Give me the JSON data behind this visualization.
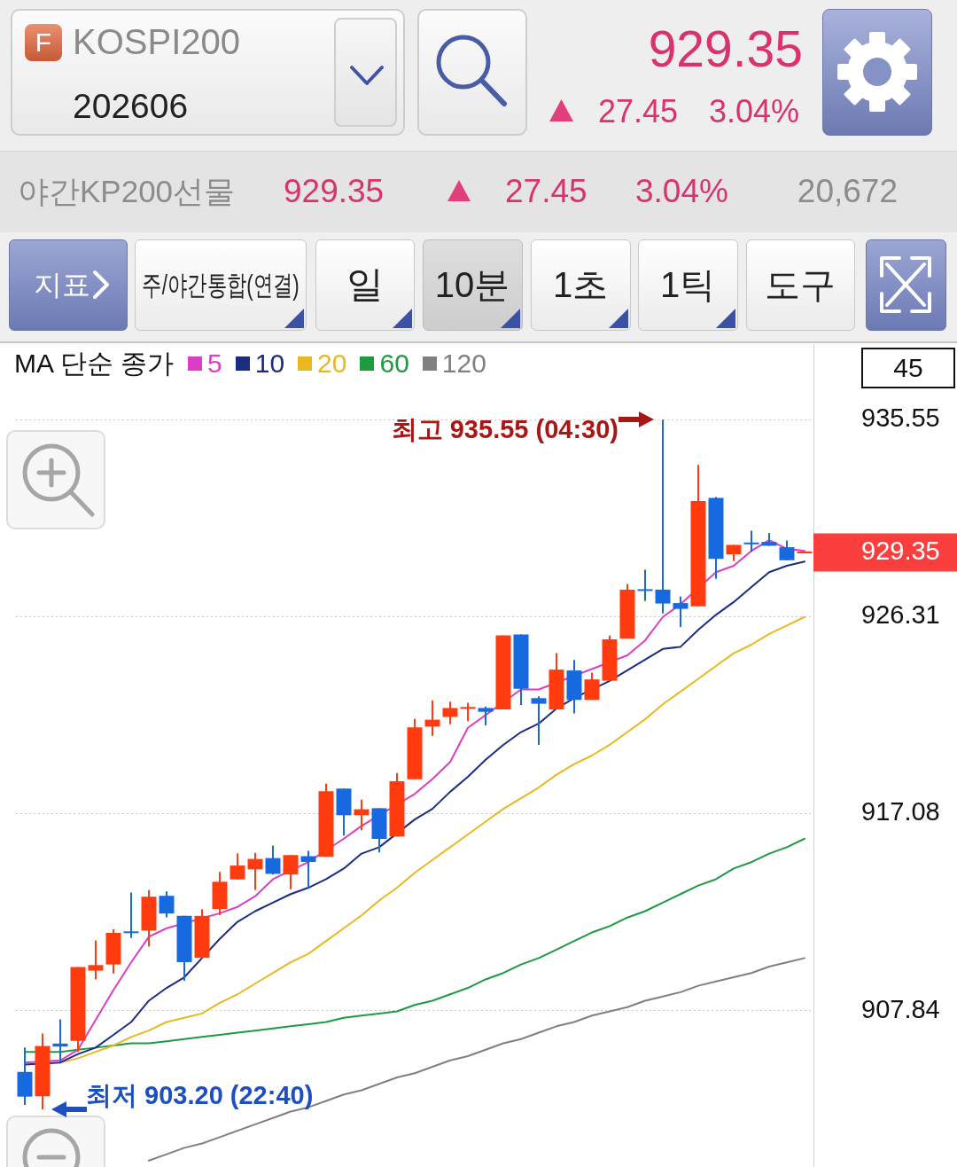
{
  "chart_data": {
    "type": "candlestick",
    "title": "KOSPI200",
    "subtitle": "202606",
    "legend_title": "MA 단순 종가",
    "categories": [
      null,
      null,
      null,
      null,
      null,
      null,
      null,
      null,
      null,
      null,
      null,
      null,
      null,
      null,
      null,
      null,
      null,
      null,
      null,
      null,
      null,
      null,
      null,
      null,
      null,
      null,
      null,
      null,
      null,
      null,
      null,
      null,
      null,
      null,
      null,
      null,
      null,
      null,
      null,
      null,
      null,
      null,
      null,
      null,
      null
    ],
    "series": [
      {
        "colors": [
          "#1769e0",
          "#ff3b0f",
          "#1769e0",
          "#ff3b0f",
          "#ff3b0f",
          "#ff3b0f",
          "#1769e0",
          "#ff3b0f",
          "#1769e0",
          "#1769e0",
          "#ff3b0f",
          "#ff3b0f",
          "#ff3b0f",
          "#ff3b0f",
          "#1769e0",
          "#ff3b0f",
          "#1769e0",
          "#ff3b0f",
          "#1769e0",
          "#ff3b0f",
          "#1769e0",
          "#ff3b0f",
          "#ff3b0f",
          "#ff3b0f",
          "#ff3b0f",
          "#ff3b0f",
          "#1769e0",
          "#ff3b0f",
          "#1769e0",
          "#1769e0",
          "#ff3b0f",
          "#1769e0",
          "#ff3b0f",
          "#ff3b0f",
          "#ff3b0f",
          "#1769e0",
          "#1769e0",
          "#1769e0",
          "#ff3b0f",
          "#1769e0",
          "#ff3b0f",
          "#1769e0",
          "#1769e0",
          "#1769e0",
          "#ff3b0f"
        ],
        "ohlc": [
          [
            904.96,
            906.11,
            903.41,
            903.8
          ],
          [
            903.82,
            906.76,
            903.2,
            906.18
          ],
          [
            906.29,
            907.43,
            905.42,
            906.15
          ],
          [
            906.42,
            909.88,
            905.9,
            909.88
          ],
          [
            909.71,
            911.13,
            909.3,
            909.97
          ],
          [
            910.0,
            911.66,
            909.58,
            911.48
          ],
          [
            911.53,
            913.37,
            911.24,
            911.49
          ],
          [
            911.59,
            913.49,
            910.85,
            913.18
          ],
          [
            913.22,
            913.43,
            912.21,
            912.39
          ],
          [
            912.28,
            912.28,
            909.23,
            910.11
          ],
          [
            910.31,
            912.59,
            910.31,
            912.28
          ],
          [
            912.6,
            914.34,
            912.31,
            913.88
          ],
          [
            913.99,
            915.2,
            913.99,
            914.64
          ],
          [
            914.46,
            915.24,
            913.5,
            914.95
          ],
          [
            914.99,
            915.58,
            914.22,
            914.25
          ],
          [
            914.22,
            915.13,
            913.53,
            915.13
          ],
          [
            915.08,
            915.33,
            913.6,
            914.81
          ],
          [
            915.05,
            918.48,
            915.05,
            918.13
          ],
          [
            918.25,
            918.25,
            916.05,
            917.0
          ],
          [
            917.0,
            917.73,
            916.3,
            917.28
          ],
          [
            917.33,
            917.33,
            915.26,
            915.89
          ],
          [
            916.0,
            918.98,
            916.0,
            918.59
          ],
          [
            918.69,
            921.52,
            918.69,
            921.12
          ],
          [
            921.16,
            922.38,
            920.71,
            921.48
          ],
          [
            921.61,
            922.33,
            921.27,
            922.03
          ],
          [
            922.02,
            922.27,
            921.41,
            922.05
          ],
          [
            922.03,
            922.1,
            921.21,
            921.85
          ],
          [
            921.96,
            925.44,
            921.96,
            925.44
          ],
          [
            925.48,
            925.48,
            922.17,
            922.93
          ],
          [
            922.49,
            922.58,
            920.3,
            922.23
          ],
          [
            921.96,
            924.6,
            921.96,
            923.83
          ],
          [
            923.79,
            924.28,
            921.78,
            922.41
          ],
          [
            922.41,
            923.69,
            922.41,
            923.37
          ],
          [
            923.31,
            925.43,
            923.31,
            925.25
          ],
          [
            925.28,
            927.85,
            925.28,
            927.58
          ],
          [
            927.58,
            928.51,
            927.05,
            927.54
          ],
          [
            927.58,
            935.55,
            926.47,
            926.93
          ],
          [
            926.95,
            927.26,
            925.83,
            926.68
          ],
          [
            926.8,
            933.43,
            926.8,
            931.74
          ],
          [
            931.88,
            931.93,
            928.09,
            929.02
          ],
          [
            929.24,
            929.68,
            928.92,
            929.68
          ],
          [
            929.77,
            930.34,
            929.36,
            929.73
          ],
          [
            929.82,
            930.24,
            929.64,
            929.64
          ],
          [
            929.57,
            929.89,
            928.96,
            928.96
          ],
          [
            929.3,
            929.35,
            929.3,
            929.35
          ]
        ]
      },
      {
        "type": "line",
        "name": "5",
        "color": "#d93ec4",
        "values": [
          905.4,
          null,
          905.5,
          906.0,
          907.4,
          908.8,
          910.1,
          911.3,
          911.7,
          null,
          null,
          912.4,
          912.7,
          913.2,
          914.0,
          null,
          914.8,
          null,
          915.9,
          916.5,
          null,
          null,
          918.0,
          918.7,
          919.5,
          921.1,
          921.7,
          null,
          922.9,
          922.9,
          null,
          null,
          null,
          null,
          924.5,
          925.2,
          926.3,
          926.9,
          null,
          928.4,
          928.7,
          929.4,
          929.9,
          929.5,
          929.4
        ]
      },
      {
        "type": "line",
        "name": "10",
        "color": "#1c2c80",
        "values": [
          905.3,
          null,
          905.4,
          905.8,
          906.1,
          906.7,
          907.3,
          908.3,
          908.9,
          909.4,
          910.3,
          911.2,
          912.0,
          912.5,
          912.9,
          913.3,
          913.6,
          914.0,
          914.5,
          915.2,
          915.5,
          null,
          916.8,
          917.3,
          918.1,
          918.8,
          919.6,
          920.3,
          920.9,
          921.3,
          922.0,
          922.5,
          null,
          923.3,
          923.8,
          924.3,
          924.8,
          924.9,
          925.7,
          926.4,
          927.0,
          927.7,
          928.4,
          928.7,
          928.9
        ]
      },
      {
        "type": "line",
        "name": "20",
        "color": "#e9b820",
        "values": [
          null,
          null,
          905.4,
          905.6,
          905.9,
          906.2,
          906.6,
          906.9,
          907.3,
          907.5,
          907.7,
          908.2,
          908.6,
          909.1,
          909.6,
          910.1,
          910.5,
          911.1,
          911.7,
          912.3,
          913.0,
          913.6,
          914.3,
          914.9,
          915.5,
          916.1,
          916.7,
          917.3,
          917.8,
          918.3,
          918.9,
          919.4,
          919.8,
          920.3,
          920.9,
          921.5,
          922.2,
          922.8,
          923.4,
          924.0,
          924.6,
          925.0,
          925.5,
          925.9,
          926.3
        ]
      },
      {
        "type": "line",
        "name": "60",
        "color": "#1e9a40",
        "values": [
          905.9,
          null,
          905.9,
          906.0,
          906.1,
          906.2,
          906.3,
          906.3,
          906.4,
          906.5,
          906.6,
          906.7,
          906.8,
          906.9,
          907.0,
          907.1,
          907.2,
          907.3,
          907.5,
          907.6,
          907.7,
          907.8,
          908.1,
          908.3,
          908.6,
          908.9,
          909.3,
          909.6,
          910.0,
          910.3,
          910.7,
          911.1,
          911.5,
          911.8,
          912.2,
          912.5,
          912.9,
          913.3,
          913.7,
          914.0,
          914.5,
          914.8,
          915.2,
          915.5,
          915.9
        ]
      },
      {
        "type": "line",
        "name": "120",
        "color": "#808080",
        "values": [
          null,
          null,
          null,
          null,
          null,
          null,
          null,
          900.8,
          901.1,
          901.4,
          901.6,
          901.9,
          902.2,
          902.5,
          902.8,
          903.1,
          903.3,
          903.6,
          903.9,
          904.1,
          904.4,
          904.7,
          904.9,
          905.2,
          905.5,
          905.7,
          906.0,
          906.3,
          906.5,
          906.8,
          907.1,
          907.3,
          907.6,
          907.8,
          908.0,
          908.3,
          908.5,
          908.7,
          909.0,
          909.2,
          909.4,
          909.6,
          909.9,
          910.1,
          910.3
        ]
      }
    ],
    "ylim": [
      900.5,
      939.1
    ],
    "yticks": [
      935.55,
      926.31,
      917.08,
      907.84
    ],
    "grid": "y",
    "legend": "top left",
    "tick_labels": "y",
    "annotations": [
      "F",
      "929.35",
      "27.45",
      "3.04%",
      "야간KP200선물",
      "929.35",
      "27.45",
      "3.04%",
      "20,672",
      "지표",
      "주/야간통합(연결)",
      "일",
      "10분",
      "1초",
      "1틱",
      "도구",
      "45",
      "최고 935.55 (04:30)",
      "최저 903.20 (22:40)",
      "929.35"
    ]
  }
}
